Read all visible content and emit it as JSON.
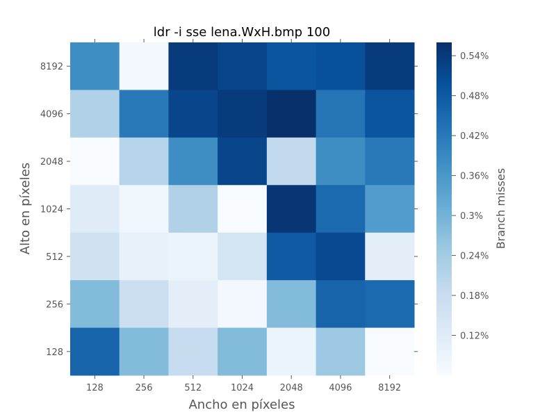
{
  "chart_data": {
    "type": "heatmap",
    "title": "ldr -i sse lena.WxH.bmp 100",
    "xlabel": "Ancho en píxeles",
    "ylabel": "Alto en píxeles",
    "x_categories": [
      "128",
      "256",
      "512",
      "1024",
      "2048",
      "4096",
      "8192"
    ],
    "y_categories": [
      "8192",
      "4096",
      "2048",
      "1024",
      "512",
      "256",
      "128"
    ],
    "values": [
      [
        0.38,
        0.07,
        0.54,
        0.52,
        0.49,
        0.5,
        0.54
      ],
      [
        0.22,
        0.42,
        0.52,
        0.54,
        0.56,
        0.43,
        0.49
      ],
      [
        0.06,
        0.21,
        0.38,
        0.52,
        0.19,
        0.38,
        0.42
      ],
      [
        0.12,
        0.08,
        0.22,
        0.06,
        0.55,
        0.45,
        0.35
      ],
      [
        0.16,
        0.1,
        0.09,
        0.15,
        0.48,
        0.51,
        0.11
      ],
      [
        0.28,
        0.17,
        0.11,
        0.07,
        0.28,
        0.46,
        0.45
      ],
      [
        0.46,
        0.28,
        0.18,
        0.28,
        0.09,
        0.25,
        0.06
      ]
    ],
    "colorbar": {
      "label": "Branch misses",
      "min": 0.06,
      "max": 0.56,
      "ticks": [
        0.12,
        0.18,
        0.24,
        0.3,
        0.36,
        0.42,
        0.48,
        0.54
      ],
      "tick_labels": [
        "0.12%",
        "0.18%",
        "0.24%",
        "0.3%",
        "0.36%",
        "0.42%",
        "0.48%",
        "0.54%"
      ],
      "colormap": [
        "#f7fbff",
        "#deebf7",
        "#c6dbef",
        "#9ecae1",
        "#6baed6",
        "#4292c6",
        "#2171b5",
        "#08519c",
        "#08306b"
      ]
    }
  }
}
